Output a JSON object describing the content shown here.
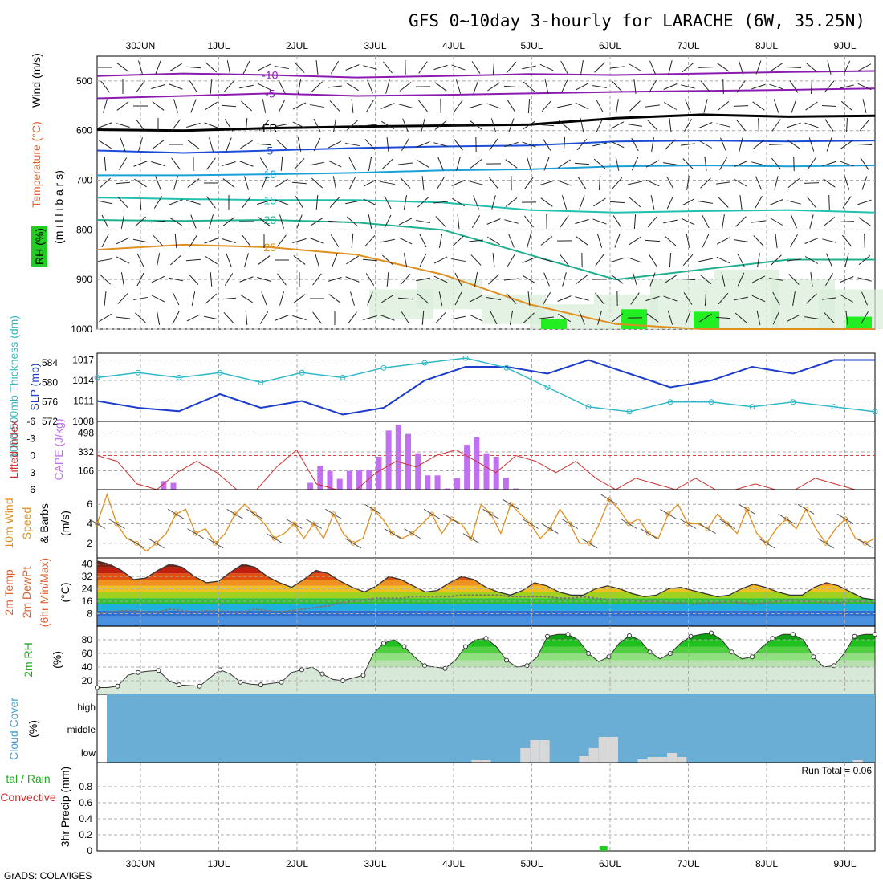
{
  "title": "GFS 0~10day 3-hourly for LARACHE (6W, 35.25N)",
  "footer": "GrADS: COLA/IGES",
  "run_total": "Run Total = 0.06",
  "dates": [
    "30JUN",
    "1JUL",
    "2JUL",
    "3JUL",
    "4JUL",
    "5JUL",
    "6JUL",
    "7JUL",
    "8JUL",
    "9JUL"
  ],
  "colors": {
    "temp_label": "#e06030",
    "wind_label": "#000000",
    "rh_fill": "#22cc22",
    "slp_line": "#1c3ccc",
    "thickness_line": "#30b8c8",
    "cape_bar": "#c070f0",
    "lifted_line": "#d03030",
    "wind10_line": "#e09020",
    "cloud_bg": "#6aaed6",
    "cloud_bar": "#d8d8d8",
    "precip_bar": "#22cc22"
  },
  "panels": {
    "upper": {
      "ylabel_wind": "Wind (m/s)",
      "ylabel_temp": "Temperature (°C)",
      "ylabel_rh": "RH (%)",
      "ylabel_mb": "(m i l l i b a r s)",
      "yticks": [
        "500",
        "600",
        "700",
        "800",
        "900",
        "1000"
      ]
    },
    "slp": {
      "ylabel_thick": "1000-500mb Thickness (dm)",
      "ylabel_slp": "SLP (mb)",
      "left_ticks": [
        "584",
        "580",
        "576",
        "572"
      ],
      "right_ticks": [
        "1017",
        "1014",
        "1011",
        "1008"
      ]
    },
    "cape": {
      "ylabel_li": "Lifted Index",
      "ylabel_cape": "CAPE (J/kg)",
      "left_ticks": [
        "-6",
        "-3",
        "0",
        "3",
        "6"
      ],
      "right_ticks": [
        "498",
        "332",
        "166"
      ]
    },
    "wind10": {
      "ylabel_a": "10m Wind",
      "ylabel_b": "Speed",
      "ylabel_c": "& Barbs",
      "ylabel_unit": "(m/s)",
      "yticks": [
        "6",
        "4",
        "2"
      ]
    },
    "temp2m": {
      "ylabel_a": "2m Temp",
      "ylabel_b": "2m DewPt",
      "ylabel_c": "(6hr Min/Max)",
      "ylabel_unit": "(°C)",
      "yticks": [
        "40",
        "32",
        "24",
        "16",
        "8"
      ]
    },
    "rh2m": {
      "ylabel_a": "2m RH",
      "ylabel_unit": "(%)",
      "yticks": [
        "80",
        "60",
        "40",
        "20"
      ]
    },
    "cloud": {
      "ylabel_a": "Cloud Cover",
      "ylabel_unit": "(%)",
      "levels": [
        "high",
        "middle",
        "low"
      ]
    },
    "precip": {
      "ylabel_a": "tal / Rain",
      "ylabel_b": "Convective",
      "ylabel_c": "3hr Precip (mm)",
      "yticks": [
        "0.8",
        "0.6",
        "0.4",
        "0.2",
        "0"
      ]
    }
  },
  "chart_data": [
    {
      "type": "line",
      "name": "upper-air cross-section",
      "ylim": [
        1000,
        450
      ],
      "contour_labels": [
        "-10",
        "-5",
        "FR",
        "5",
        "10",
        "15",
        "20",
        "25"
      ],
      "isotherms": [
        {
          "label": "-10",
          "values": [
            490,
            485,
            488,
            493,
            490,
            486,
            488,
            485,
            482,
            480
          ]
        },
        {
          "label": "-5",
          "values": [
            535,
            530,
            525,
            530,
            528,
            525,
            522,
            520,
            518,
            515
          ]
        },
        {
          "label": "FR",
          "values": [
            598,
            600,
            595,
            592,
            590,
            588,
            575,
            568,
            572,
            570
          ]
        },
        {
          "label": "5",
          "values": [
            640,
            645,
            640,
            635,
            632,
            630,
            622,
            620,
            622,
            620
          ]
        },
        {
          "label": "10",
          "values": [
            690,
            690,
            688,
            685,
            680,
            678,
            672,
            670,
            672,
            670
          ]
        },
        {
          "label": "15",
          "values": [
            735,
            738,
            740,
            740,
            745,
            760,
            765,
            762,
            760,
            765
          ]
        },
        {
          "label": "20",
          "values": [
            780,
            782,
            780,
            785,
            800,
            850,
            900,
            880,
            860,
            860
          ]
        },
        {
          "label": "25",
          "values": [
            840,
            830,
            835,
            850,
            890,
            950,
            990,
            1000,
            1000,
            1000
          ]
        }
      ]
    },
    {
      "type": "line",
      "name": "slp-thickness",
      "thickness_ylim": [
        572,
        586
      ],
      "slp_ylim": [
        1008,
        1018
      ],
      "x_hours": [
        0,
        12,
        24,
        36,
        48,
        60,
        72,
        84,
        96,
        108,
        120,
        132,
        144,
        156,
        168,
        180,
        192,
        204,
        216,
        228
      ],
      "slp": [
        1011,
        1010,
        1009.5,
        1012,
        1010,
        1011,
        1009,
        1010,
        1014,
        1016,
        1016,
        1015,
        1017,
        1015,
        1013,
        1014,
        1016,
        1015,
        1017,
        1017
      ],
      "thickness": [
        581,
        582,
        581,
        582,
        580,
        582,
        581,
        583,
        584,
        585,
        583,
        579,
        575,
        574,
        576,
        576,
        575,
        576,
        575,
        574
      ]
    },
    {
      "type": "bar",
      "name": "cape-lifted-index",
      "cape_ylim": [
        0,
        600
      ],
      "li_ylim": [
        6,
        -6
      ],
      "cape_bars": [
        {
          "x": 21,
          "v": 75
        },
        {
          "x": 24,
          "v": 60
        },
        {
          "x": 66,
          "v": 60
        },
        {
          "x": 69,
          "v": 210
        },
        {
          "x": 72,
          "v": 165
        },
        {
          "x": 75,
          "v": 95
        },
        {
          "x": 78,
          "v": 165
        },
        {
          "x": 81,
          "v": 170
        },
        {
          "x": 84,
          "v": 175
        },
        {
          "x": 87,
          "v": 290
        },
        {
          "x": 90,
          "v": 520
        },
        {
          "x": 93,
          "v": 570
        },
        {
          "x": 96,
          "v": 490
        },
        {
          "x": 99,
          "v": 320
        },
        {
          "x": 102,
          "v": 125
        },
        {
          "x": 105,
          "v": 125
        },
        {
          "x": 108,
          "v": 10
        },
        {
          "x": 111,
          "v": 100
        },
        {
          "x": 114,
          "v": 395
        },
        {
          "x": 117,
          "v": 460
        },
        {
          "x": 120,
          "v": 320
        },
        {
          "x": 123,
          "v": 290
        },
        {
          "x": 126,
          "v": 105
        },
        {
          "x": 129,
          "v": 10
        }
      ],
      "lifted_index": [
        0,
        1,
        5,
        6,
        3,
        1,
        3,
        6,
        6,
        2,
        -1,
        5,
        6,
        6,
        3,
        1,
        2,
        0,
        -1,
        1,
        3,
        0,
        1,
        3,
        1,
        4,
        6,
        4,
        5,
        6,
        4,
        6,
        6,
        5,
        6,
        6,
        4,
        5,
        6,
        6
      ]
    },
    {
      "type": "line",
      "name": "10m-wind-speed",
      "ylim": [
        0.5,
        7.5
      ],
      "values": [
        4,
        7,
        4,
        2.5,
        2,
        1.2,
        2,
        3,
        5,
        5.5,
        3,
        3.5,
        2,
        3,
        5,
        6,
        5,
        4,
        2.5,
        3,
        4,
        2.5,
        4,
        2.5,
        5,
        3,
        2,
        2.5,
        5.5,
        4.5,
        3,
        2.5,
        3,
        4,
        5,
        3,
        4.5,
        4,
        2.5,
        6,
        5,
        3,
        6,
        5,
        4,
        2.5,
        3.5,
        5.5,
        4,
        2,
        2,
        4,
        6.5,
        5.5,
        4,
        4.5,
        3,
        2.5,
        5,
        6,
        4,
        4,
        3.5,
        5,
        4,
        3,
        5.5,
        3,
        2,
        3.5,
        4.5,
        3.5,
        5.5,
        3.5,
        2,
        3.5,
        4.5,
        2.5,
        2,
        2.5
      ]
    },
    {
      "type": "area",
      "name": "2m-temperature",
      "ylim": [
        0,
        44
      ],
      "temp_max": [
        42,
        40,
        36,
        30,
        31,
        36,
        40,
        38,
        32,
        28,
        29,
        35,
        40,
        38,
        32,
        28,
        25,
        30,
        36,
        34,
        29,
        25,
        22,
        26,
        32,
        30,
        26,
        22,
        23,
        28,
        32,
        30,
        25,
        22,
        20,
        23,
        28,
        26,
        22,
        20,
        20,
        24,
        26,
        24,
        21,
        19,
        20,
        24,
        25,
        23,
        21,
        19,
        20,
        24,
        27,
        25,
        22,
        20,
        20,
        25,
        28,
        26,
        22,
        18,
        17
      ],
      "dewpoint": [
        8,
        9,
        10,
        10,
        9,
        9,
        11,
        10,
        9,
        10,
        10,
        9,
        9,
        11,
        10,
        9,
        10,
        11,
        12,
        13,
        15,
        16,
        17,
        18,
        18,
        18,
        19,
        19,
        19,
        19,
        20,
        20,
        20,
        20,
        19,
        19,
        19,
        19,
        18,
        18,
        19,
        18,
        17,
        17,
        17,
        16,
        16,
        15,
        15,
        14,
        15,
        15,
        16,
        15,
        14,
        15,
        16,
        17,
        16,
        16,
        15,
        15,
        16,
        16,
        15
      ]
    },
    {
      "type": "area",
      "name": "2m-relative-humidity",
      "ylim": [
        0,
        100
      ],
      "values": [
        10,
        10,
        12,
        28,
        32,
        34,
        35,
        20,
        14,
        13,
        12,
        24,
        36,
        30,
        18,
        15,
        14,
        16,
        18,
        32,
        36,
        40,
        30,
        22,
        20,
        24,
        28,
        60,
        75,
        80,
        70,
        55,
        42,
        40,
        38,
        50,
        70,
        80,
        82,
        70,
        50,
        40,
        42,
        55,
        85,
        88,
        88,
        80,
        60,
        48,
        55,
        75,
        86,
        80,
        62,
        52,
        60,
        75,
        85,
        88,
        90,
        80,
        62,
        52,
        55,
        70,
        82,
        88,
        88,
        80,
        55,
        40,
        42,
        60,
        85,
        88,
        88
      ]
    },
    {
      "type": "bar",
      "name": "cloud-cover",
      "ylim": [
        0,
        100
      ],
      "low_cloud": [
        {
          "x": 117,
          "v": 3
        },
        {
          "x": 120,
          "v": 3
        },
        {
          "x": 132,
          "v": 18
        },
        {
          "x": 135,
          "v": 28
        },
        {
          "x": 138,
          "v": 28
        },
        {
          "x": 150,
          "v": 8
        },
        {
          "x": 153,
          "v": 18
        },
        {
          "x": 156,
          "v": 32
        },
        {
          "x": 159,
          "v": 32
        },
        {
          "x": 168,
          "v": 4
        },
        {
          "x": 171,
          "v": 7
        },
        {
          "x": 174,
          "v": 7
        },
        {
          "x": 177,
          "v": 12
        },
        {
          "x": 180,
          "v": 7
        },
        {
          "x": 234,
          "v": 3
        }
      ]
    },
    {
      "type": "bar",
      "name": "3hr-precipitation",
      "ylim": [
        0,
        1
      ],
      "rain": [
        {
          "x": 156,
          "v": 0.06
        }
      ]
    }
  ]
}
